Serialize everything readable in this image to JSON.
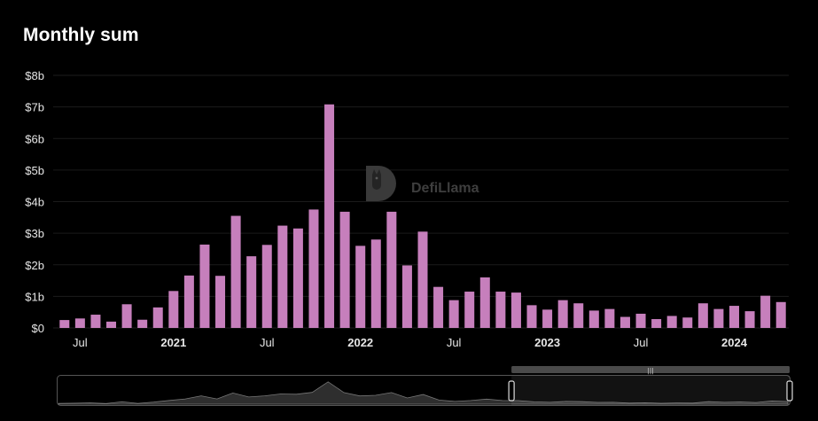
{
  "header": {
    "title": "Monthly sum"
  },
  "watermark": {
    "text": "DefiLlama"
  },
  "colors": {
    "bar": "#c67fbc",
    "background": "#000000",
    "zoom_overlay": "#4a4a4a"
  },
  "chart_data": {
    "type": "bar",
    "title": "Monthly sum",
    "xlabel": "",
    "ylabel": "",
    "ylim": [
      0,
      8
    ],
    "y_unit": "$b",
    "y_ticks": [
      "$0",
      "$1b",
      "$2b",
      "$3b",
      "$4b",
      "$5b",
      "$6b",
      "$7b",
      "$8b"
    ],
    "x_ticks": [
      {
        "label": "Jul",
        "month": "2020-07",
        "bold": false
      },
      {
        "label": "2021",
        "month": "2021-01",
        "bold": true
      },
      {
        "label": "Jul",
        "month": "2021-07",
        "bold": false
      },
      {
        "label": "2022",
        "month": "2022-01",
        "bold": true
      },
      {
        "label": "Jul",
        "month": "2022-07",
        "bold": false
      },
      {
        "label": "2023",
        "month": "2023-01",
        "bold": true
      },
      {
        "label": "Jul",
        "month": "2023-07",
        "bold": false
      },
      {
        "label": "2024",
        "month": "2024-01",
        "bold": true
      }
    ],
    "categories": [
      "2020-06",
      "2020-07",
      "2020-08",
      "2020-09",
      "2020-10",
      "2020-11",
      "2020-12",
      "2021-01",
      "2021-02",
      "2021-03",
      "2021-04",
      "2021-05",
      "2021-06",
      "2021-07",
      "2021-08",
      "2021-09",
      "2021-10",
      "2021-11",
      "2021-12",
      "2022-01",
      "2022-02",
      "2022-03",
      "2022-04",
      "2022-05",
      "2022-06",
      "2022-07",
      "2022-08",
      "2022-09",
      "2022-10",
      "2022-11",
      "2022-12",
      "2023-01",
      "2023-02",
      "2023-03",
      "2023-04",
      "2023-05",
      "2023-06",
      "2023-07",
      "2023-08",
      "2023-09",
      "2023-10",
      "2023-11",
      "2023-12",
      "2024-01",
      "2024-02",
      "2024-03",
      "2024-04"
    ],
    "series": [
      {
        "values": [
          0.25,
          0.3,
          0.42,
          0.2,
          0.75,
          0.26,
          0.65,
          1.17,
          1.66,
          2.64,
          1.65,
          3.55,
          2.27,
          2.63,
          3.24,
          3.15,
          3.75,
          7.08,
          3.68,
          2.6,
          2.8,
          3.68,
          1.98,
          3.05,
          1.3,
          0.88,
          1.15,
          1.6,
          1.15,
          1.12,
          0.72,
          0.58,
          0.88,
          0.78,
          0.55,
          0.6,
          0.35,
          0.45,
          0.28,
          0.38,
          0.33,
          0.78,
          0.6,
          0.7,
          0.53,
          1.02,
          0.82
        ]
      }
    ],
    "grid": true,
    "legend": "none"
  },
  "zoom": {
    "handle_glyph": "|||",
    "selection_start": 0.62,
    "selection_end": 1.0
  }
}
